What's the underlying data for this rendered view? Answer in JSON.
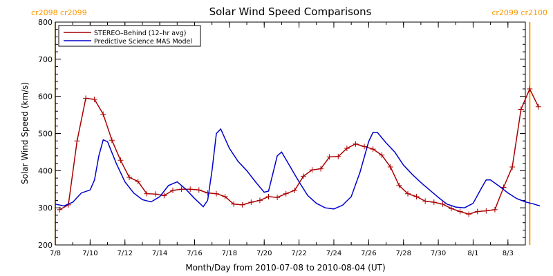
{
  "chart_data": {
    "type": "line",
    "title": "Solar Wind Speed Comparisons",
    "xlabel": "Month/Day from 2010-07-08 to 2010-08-04 (UT)",
    "ylabel": "Solar Wind Speed (km/s)",
    "xlim": [
      "2010-07-08",
      "2010-08-04"
    ],
    "ylim": [
      200,
      800
    ],
    "yticks": [
      200,
      300,
      400,
      500,
      600,
      700,
      800
    ],
    "xticks": [
      {
        "date": "2010-07-08",
        "label": "7/8"
      },
      {
        "date": "2010-07-10",
        "label": "7/10"
      },
      {
        "date": "2010-07-12",
        "label": "7/12"
      },
      {
        "date": "2010-07-14",
        "label": "7/14"
      },
      {
        "date": "2010-07-16",
        "label": "7/16"
      },
      {
        "date": "2010-07-18",
        "label": "7/18"
      },
      {
        "date": "2010-07-20",
        "label": "7/20"
      },
      {
        "date": "2010-07-22",
        "label": "7/22"
      },
      {
        "date": "2010-07-24",
        "label": "7/24"
      },
      {
        "date": "2010-07-26",
        "label": "7/26"
      },
      {
        "date": "2010-07-28",
        "label": "7/28"
      },
      {
        "date": "2010-07-30",
        "label": "7/30"
      },
      {
        "date": "2010-08-01",
        "label": "8/1"
      },
      {
        "date": "2010-08-03",
        "label": "8/3"
      }
    ],
    "legend_position": "top-left",
    "grid": false,
    "colors": {
      "stereo": "#aa0000",
      "model": "#0000cc",
      "boundary": "#ff9900"
    },
    "carrington_boundaries": [
      {
        "date": "2010-07-08 00:00",
        "label": "cr2098 cr2099",
        "label_position": "top-left"
      },
      {
        "date": "2010-08-04 06:00",
        "label": "cr2099 cr2100",
        "label_position": "top-right"
      }
    ],
    "series": [
      {
        "name": "STEREO–Behind (12–hr avg)",
        "color": "#aa0000",
        "markers": "plus",
        "points": [
          [
            "2010-07-08 06:00",
            295
          ],
          [
            "2010-07-08 18:00",
            308
          ],
          [
            "2010-07-09 06:00",
            480
          ],
          [
            "2010-07-09 18:00",
            595
          ],
          [
            "2010-07-10 06:00",
            592
          ],
          [
            "2010-07-10 18:00",
            552
          ],
          [
            "2010-07-11 06:00",
            482
          ],
          [
            "2010-07-11 18:00",
            428
          ],
          [
            "2010-07-12 06:00",
            382
          ],
          [
            "2010-07-12 18:00",
            371
          ],
          [
            "2010-07-13 06:00",
            338
          ],
          [
            "2010-07-13 18:00",
            337
          ],
          [
            "2010-07-14 06:00",
            333
          ],
          [
            "2010-07-14 18:00",
            347
          ],
          [
            "2010-07-15 06:00",
            350
          ],
          [
            "2010-07-15 18:00",
            350
          ],
          [
            "2010-07-16 06:00",
            348
          ],
          [
            "2010-07-16 18:00",
            340
          ],
          [
            "2010-07-17 06:00",
            338
          ],
          [
            "2010-07-17 18:00",
            330
          ],
          [
            "2010-07-18 06:00",
            310
          ],
          [
            "2010-07-18 18:00",
            308
          ],
          [
            "2010-07-19 06:00",
            315
          ],
          [
            "2010-07-19 18:00",
            320
          ],
          [
            "2010-07-20 06:00",
            330
          ],
          [
            "2010-07-20 18:00",
            328
          ],
          [
            "2010-07-21 06:00",
            338
          ],
          [
            "2010-07-21 18:00",
            347
          ],
          [
            "2010-07-22 06:00",
            385
          ],
          [
            "2010-07-22 18:00",
            402
          ],
          [
            "2010-07-23 06:00",
            405
          ],
          [
            "2010-07-23 18:00",
            437
          ],
          [
            "2010-07-24 06:00",
            438
          ],
          [
            "2010-07-24 18:00",
            460
          ],
          [
            "2010-07-25 06:00",
            472
          ],
          [
            "2010-07-25 18:00",
            465
          ],
          [
            "2010-07-26 06:00",
            458
          ],
          [
            "2010-07-26 18:00",
            442
          ],
          [
            "2010-07-27 06:00",
            410
          ],
          [
            "2010-07-27 18:00",
            360
          ],
          [
            "2010-07-28 06:00",
            338
          ],
          [
            "2010-07-28 18:00",
            330
          ],
          [
            "2010-07-29 06:00",
            318
          ],
          [
            "2010-07-29 18:00",
            315
          ],
          [
            "2010-07-30 06:00",
            310
          ],
          [
            "2010-07-30 18:00",
            298
          ],
          [
            "2010-07-31 06:00",
            290
          ],
          [
            "2010-07-31 18:00",
            283
          ],
          [
            "2010-08-01 06:00",
            290
          ],
          [
            "2010-08-01 18:00",
            292
          ],
          [
            "2010-08-02 06:00",
            295
          ],
          [
            "2010-08-02 18:00",
            355
          ],
          [
            "2010-08-03 06:00",
            410
          ],
          [
            "2010-08-03 18:00",
            565
          ],
          [
            "2010-08-04 06:00",
            620
          ],
          [
            "2010-08-04 18:00",
            572
          ]
        ]
      },
      {
        "name": "Predictive Science MAS Model",
        "color": "#0000cc",
        "markers": "none",
        "points": [
          [
            "2010-07-08 00:00",
            310
          ],
          [
            "2010-07-08 12:00",
            305
          ],
          [
            "2010-07-09 00:00",
            315
          ],
          [
            "2010-07-09 12:00",
            340
          ],
          [
            "2010-07-10 00:00",
            348
          ],
          [
            "2010-07-10 06:00",
            375
          ],
          [
            "2010-07-10 12:00",
            440
          ],
          [
            "2010-07-10 18:00",
            483
          ],
          [
            "2010-07-11 00:00",
            478
          ],
          [
            "2010-07-11 12:00",
            420
          ],
          [
            "2010-07-12 00:00",
            370
          ],
          [
            "2010-07-12 12:00",
            340
          ],
          [
            "2010-07-13 00:00",
            322
          ],
          [
            "2010-07-13 12:00",
            316
          ],
          [
            "2010-07-14 00:00",
            330
          ],
          [
            "2010-07-14 12:00",
            360
          ],
          [
            "2010-07-15 00:00",
            370
          ],
          [
            "2010-07-15 12:00",
            350
          ],
          [
            "2010-07-16 00:00",
            325
          ],
          [
            "2010-07-16 12:00",
            303
          ],
          [
            "2010-07-16 18:00",
            320
          ],
          [
            "2010-07-17 00:00",
            400
          ],
          [
            "2010-07-17 06:00",
            500
          ],
          [
            "2010-07-17 12:00",
            512
          ],
          [
            "2010-07-18 00:00",
            460
          ],
          [
            "2010-07-18 12:00",
            425
          ],
          [
            "2010-07-19 00:00",
            400
          ],
          [
            "2010-07-19 12:00",
            370
          ],
          [
            "2010-07-20 00:00",
            342
          ],
          [
            "2010-07-20 06:00",
            345
          ],
          [
            "2010-07-20 18:00",
            440
          ],
          [
            "2010-07-21 00:00",
            450
          ],
          [
            "2010-07-21 12:00",
            410
          ],
          [
            "2010-07-22 00:00",
            370
          ],
          [
            "2010-07-22 12:00",
            333
          ],
          [
            "2010-07-23 00:00",
            312
          ],
          [
            "2010-07-23 12:00",
            300
          ],
          [
            "2010-07-24 00:00",
            297
          ],
          [
            "2010-07-24 12:00",
            307
          ],
          [
            "2010-07-25 00:00",
            330
          ],
          [
            "2010-07-25 12:00",
            395
          ],
          [
            "2010-07-26 00:00",
            478
          ],
          [
            "2010-07-26 06:00",
            503
          ],
          [
            "2010-07-26 12:00",
            503
          ],
          [
            "2010-07-27 00:00",
            475
          ],
          [
            "2010-07-27 12:00",
            450
          ],
          [
            "2010-07-28 00:00",
            415
          ],
          [
            "2010-07-28 12:00",
            390
          ],
          [
            "2010-07-29 00:00",
            368
          ],
          [
            "2010-07-29 12:00",
            348
          ],
          [
            "2010-07-30 00:00",
            328
          ],
          [
            "2010-07-30 12:00",
            310
          ],
          [
            "2010-07-31 00:00",
            302
          ],
          [
            "2010-07-31 12:00",
            300
          ],
          [
            "2010-08-01 00:00",
            312
          ],
          [
            "2010-08-01 12:00",
            355
          ],
          [
            "2010-08-01 18:00",
            375
          ],
          [
            "2010-08-02 00:00",
            375
          ],
          [
            "2010-08-02 12:00",
            358
          ],
          [
            "2010-08-03 00:00",
            340
          ],
          [
            "2010-08-03 12:00",
            325
          ],
          [
            "2010-08-04 00:00",
            316
          ],
          [
            "2010-08-04 12:00",
            310
          ],
          [
            "2010-08-04 20:00",
            305
          ]
        ]
      }
    ]
  }
}
